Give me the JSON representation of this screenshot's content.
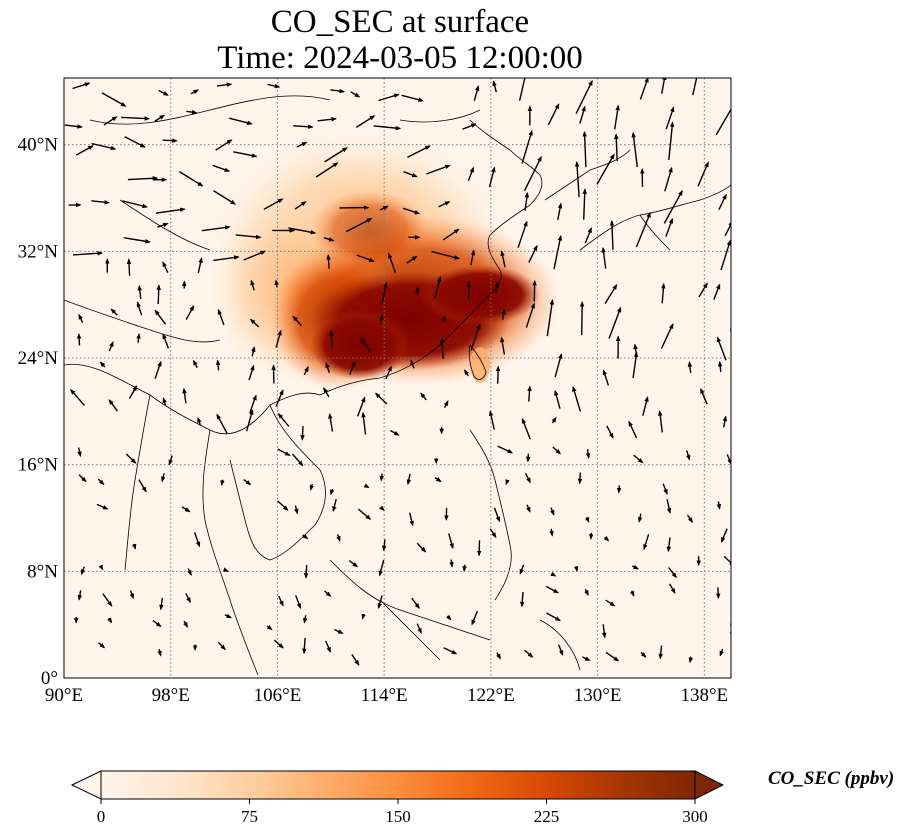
{
  "title": {
    "line1": "CO_SEC at surface",
    "line2": "Time: 2024-03-05 12:00:00"
  },
  "map": {
    "lon_range": [
      90,
      140
    ],
    "lat_range": [
      0,
      45
    ],
    "lon_ticks": [
      {
        "value": 90,
        "label": "90°E"
      },
      {
        "value": 98,
        "label": "98°E"
      },
      {
        "value": 106,
        "label": "106°E"
      },
      {
        "value": 114,
        "label": "114°E"
      },
      {
        "value": 122,
        "label": "122°E"
      },
      {
        "value": 130,
        "label": "130°E"
      },
      {
        "value": 138,
        "label": "138°E"
      }
    ],
    "lat_ticks": [
      {
        "value": 0,
        "label": "0°"
      },
      {
        "value": 8,
        "label": "8°N"
      },
      {
        "value": 16,
        "label": "16°N"
      },
      {
        "value": 24,
        "label": "24°N"
      },
      {
        "value": 32,
        "label": "32°N"
      },
      {
        "value": 40,
        "label": "40°N"
      }
    ],
    "gridlines": true,
    "background_color": "#fff5eb",
    "plume_peak_region": "South and East China (approx. 108–126°E, 22–32°N)"
  },
  "colorbar": {
    "label": "CO_SEC (ppbv)",
    "range": [
      0,
      300
    ],
    "ticks": [
      {
        "value": 0,
        "label": "0"
      },
      {
        "value": 75,
        "label": "75"
      },
      {
        "value": 150,
        "label": "150"
      },
      {
        "value": 225,
        "label": "225"
      },
      {
        "value": 300,
        "label": "300"
      }
    ],
    "colors": [
      "#fff5eb",
      "#fee6ce",
      "#fdd0a2",
      "#fdae6b",
      "#fd8d3c",
      "#f16913",
      "#d94801",
      "#a63603",
      "#7f2704"
    ],
    "extend": "both"
  }
}
